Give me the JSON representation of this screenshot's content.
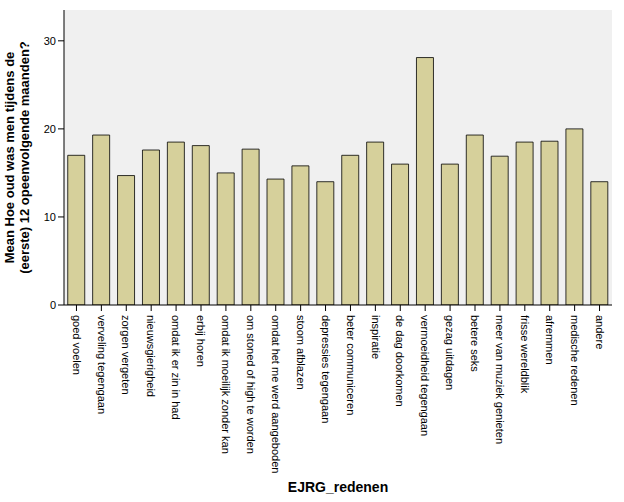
{
  "chart_data": {
    "type": "bar",
    "x_label": "EJRG_redenen",
    "y_label": "Mean Hoe oud was men tijdens de (eerste) 12 opeenvolgende maanden?",
    "categories": [
      "goed voelen",
      "verveling tegengaan",
      "zorgen vergeten",
      "nieuwsgierigheid",
      "omdat ik er zin in had",
      "erbij horen",
      "omdat ik moeilijk zonder kan",
      "om stoned of high te worden",
      "omdat het me werd aangeboden",
      "stoom afblazen",
      "depressies tegengaan",
      "beter communiceren",
      "inspiratie",
      "de dag doorkomen",
      "vermoeidheid tegengaan",
      "gezag uitdagen",
      "betere seks",
      "meer van muziek genieten",
      "frisse wereldblik",
      "afremmen",
      "medische redenen",
      "andere"
    ],
    "values": [
      17.0,
      19.3,
      14.7,
      17.6,
      18.5,
      18.1,
      15.0,
      17.7,
      14.3,
      15.8,
      14.0,
      17.0,
      18.5,
      16.0,
      28.1,
      16.0,
      19.3,
      16.9,
      18.5,
      18.6,
      20.0,
      14.0
    ],
    "color": "#d6d09b",
    "ylim": [
      0,
      33.5
    ],
    "yticks": [
      0,
      10,
      20,
      30
    ],
    "grid": false
  }
}
